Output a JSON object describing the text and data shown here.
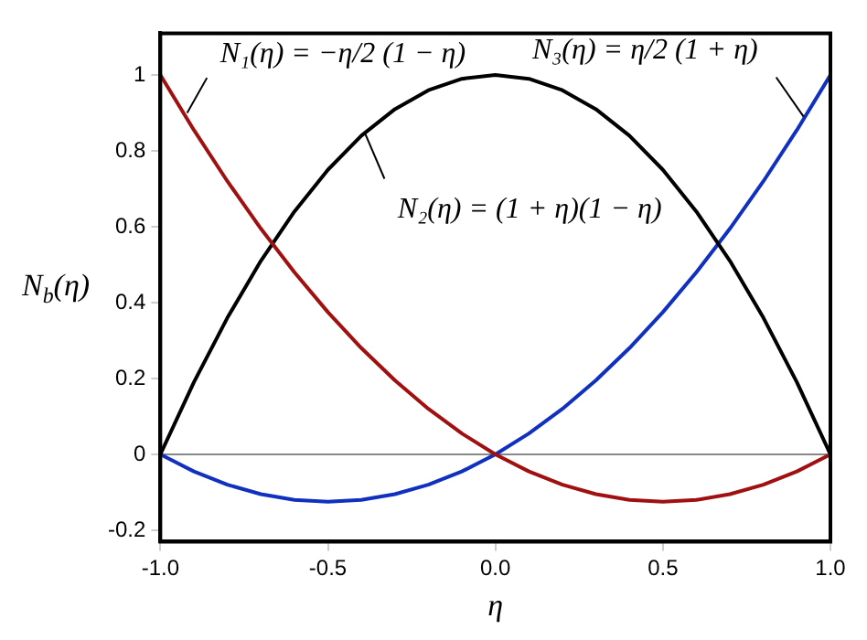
{
  "chart_data": {
    "type": "line",
    "xlabel": "η",
    "ylabel": "N$_{b}$(η)",
    "x": [
      -1,
      -0.9,
      -0.8,
      -0.7,
      -0.6,
      -0.5,
      -0.4,
      -0.3,
      -0.2,
      -0.1,
      0,
      0.1,
      0.2,
      0.3,
      0.4,
      0.5,
      0.6,
      0.7,
      0.8,
      0.9,
      1
    ],
    "series": [
      {
        "color": "#a01010",
        "values": [
          1,
          0.855,
          0.72,
          0.595,
          0.48,
          0.375,
          0.28,
          0.195,
          0.12,
          0.055,
          0,
          -0.045,
          -0.08,
          -0.105,
          -0.12,
          -0.125,
          -0.12,
          -0.105,
          -0.08,
          -0.045,
          0
        ]
      },
      {
        "color": "#000000",
        "values": [
          0,
          0.19,
          0.36,
          0.51,
          0.64,
          0.75,
          0.84,
          0.91,
          0.96,
          0.99,
          1,
          0.99,
          0.96,
          0.91,
          0.84,
          0.75,
          0.64,
          0.51,
          0.36,
          0.19,
          0
        ]
      },
      {
        "color": "#1030c0",
        "values": [
          0,
          -0.045,
          -0.08,
          -0.105,
          -0.12,
          -0.125,
          -0.12,
          -0.105,
          -0.08,
          -0.045,
          0,
          0.055,
          0.12,
          0.195,
          0.28,
          0.375,
          0.48,
          0.595,
          0.72,
          0.855,
          1
        ]
      }
    ],
    "xlim": [
      -1,
      1
    ],
    "xticks": [
      {
        "value": -1,
        "label": "-1.0"
      },
      {
        "value": -0.5,
        "label": "-0.5"
      },
      {
        "value": 0,
        "label": "0.0"
      },
      {
        "value": 0.5,
        "label": "0.5"
      },
      {
        "value": 1,
        "label": "1.0"
      }
    ],
    "ylim": [
      -0.23,
      1.11
    ],
    "yticks": [
      -0.2,
      0,
      0.2,
      0.4,
      0.6,
      0.8,
      1
    ],
    "ref_lines": [
      {
        "axis": "y",
        "value": 0,
        "color": "#888888"
      }
    ],
    "annotations": [
      {
        "text": "N₁(η) = −η/2 (1 − η)",
        "x": -0.92,
        "y": 0.9
      },
      {
        "text": "N₂(η) = (1 + η)(1 − η)",
        "x": -0.39,
        "y": 0.848
      },
      {
        "text": "N₃(η) = η/2 (1 + η)",
        "x": 0.92,
        "y": 0.89
      }
    ],
    "grid": false,
    "legend": false
  }
}
